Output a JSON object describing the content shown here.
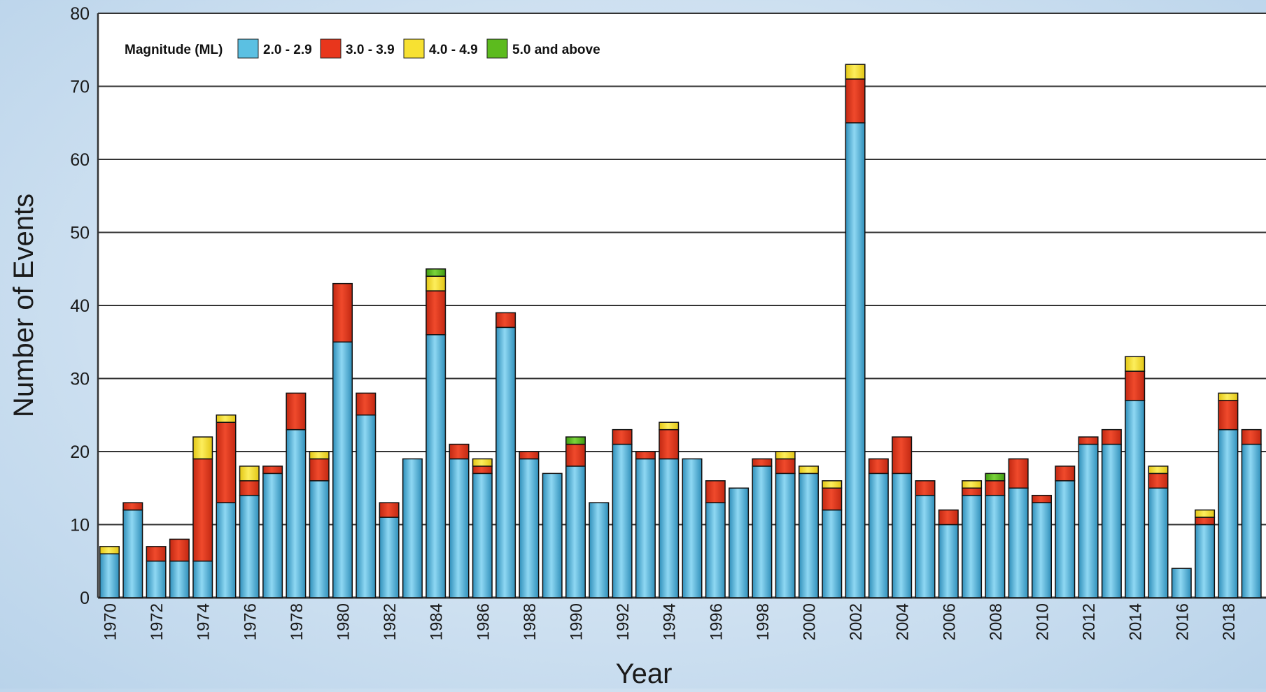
{
  "chart_data": {
    "type": "bar",
    "stacked": true,
    "xlabel": "Year",
    "ylabel": "Number of Events",
    "ylim": [
      0,
      80
    ],
    "yticks": [
      0,
      10,
      20,
      30,
      40,
      50,
      60,
      70,
      80
    ],
    "grid": true,
    "legend": {
      "title": "Magnitude (ML)",
      "placement": "top-left"
    },
    "categories": [
      "1970",
      "1971",
      "1972",
      "1973",
      "1974",
      "1975",
      "1976",
      "1977",
      "1978",
      "1979",
      "1980",
      "1981",
      "1982",
      "1983",
      "1984",
      "1985",
      "1986",
      "1987",
      "1988",
      "1989",
      "1990",
      "1991",
      "1992",
      "1993",
      "1994",
      "1995",
      "1996",
      "1997",
      "1998",
      "1999",
      "2000",
      "2001",
      "2002",
      "2003",
      "2004",
      "2005",
      "2006",
      "2007",
      "2008",
      "2009",
      "2010",
      "2011",
      "2012",
      "2013",
      "2014",
      "2015",
      "2016",
      "2017",
      "2018",
      "2019"
    ],
    "tick_labels": [
      "1970",
      "1972",
      "1974",
      "1976",
      "1978",
      "1980",
      "1982",
      "1984",
      "1986",
      "1988",
      "1990",
      "1992",
      "1994",
      "1996",
      "1998",
      "2000",
      "2002",
      "2004",
      "2006",
      "2008",
      "2010",
      "2012",
      "2014",
      "2016",
      "2018"
    ],
    "series": [
      {
        "name": "2.0 - 2.9",
        "color": "#5bc0e2",
        "values": [
          6,
          12,
          5,
          5,
          5,
          13,
          14,
          17,
          23,
          16,
          35,
          25,
          11,
          19,
          36,
          19,
          17,
          37,
          19,
          17,
          18,
          13,
          21,
          19,
          19,
          19,
          13,
          15,
          18,
          17,
          17,
          12,
          65,
          17,
          17,
          14,
          10,
          14,
          14,
          15,
          13,
          16,
          21,
          21,
          27,
          15,
          4,
          10,
          23,
          21
        ]
      },
      {
        "name": "3.0 - 3.9",
        "color": "#e8361c",
        "values": [
          0,
          1,
          2,
          3,
          14,
          11,
          2,
          1,
          5,
          3,
          8,
          3,
          2,
          0,
          6,
          2,
          1,
          2,
          1,
          0,
          3,
          0,
          2,
          1,
          4,
          0,
          3,
          0,
          1,
          2,
          0,
          3,
          6,
          2,
          5,
          2,
          2,
          1,
          2,
          4,
          1,
          2,
          1,
          2,
          4,
          2,
          0,
          1,
          4,
          2
        ]
      },
      {
        "name": "4.0 - 4.9",
        "color": "#f7e132",
        "values": [
          1,
          0,
          0,
          0,
          3,
          1,
          2,
          0,
          0,
          1,
          0,
          0,
          0,
          0,
          2,
          0,
          1,
          0,
          0,
          0,
          0,
          0,
          0,
          0,
          1,
          0,
          0,
          0,
          0,
          1,
          1,
          1,
          2,
          0,
          0,
          0,
          0,
          1,
          0,
          0,
          0,
          0,
          0,
          0,
          2,
          1,
          0,
          1,
          1,
          0
        ]
      },
      {
        "name": "5.0 and above",
        "color": "#5cbb1e",
        "values": [
          0,
          0,
          0,
          0,
          0,
          0,
          0,
          0,
          0,
          0,
          0,
          0,
          0,
          0,
          1,
          0,
          0,
          0,
          0,
          0,
          1,
          0,
          0,
          0,
          0,
          0,
          0,
          0,
          0,
          0,
          0,
          0,
          0,
          0,
          0,
          0,
          0,
          0,
          1,
          0,
          0,
          0,
          0,
          0,
          0,
          0,
          0,
          0,
          0,
          0
        ]
      }
    ]
  }
}
